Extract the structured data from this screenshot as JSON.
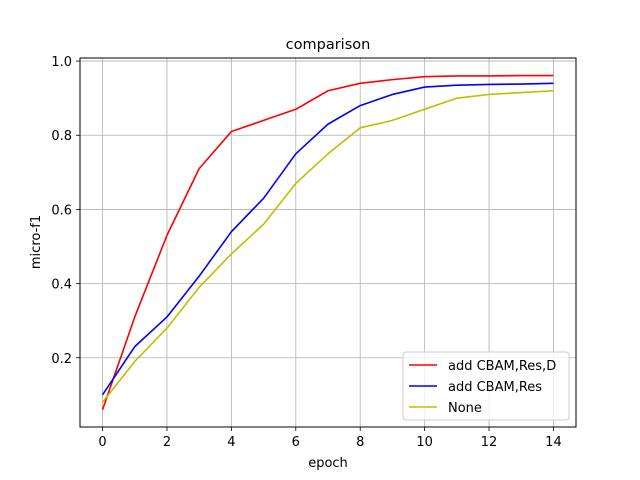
{
  "chart_data": {
    "type": "line",
    "title": "comparison",
    "xlabel": "epoch",
    "ylabel": "micro-f1",
    "xlim": [
      -0.7,
      14.7
    ],
    "ylim": [
      0.0133,
      1.0083
    ],
    "x_ticks": [
      0,
      2,
      4,
      6,
      8,
      10,
      12,
      14
    ],
    "y_ticks": [
      0.2,
      0.4,
      0.6,
      0.8,
      1.0
    ],
    "x_tick_labels": [
      "0",
      "2",
      "4",
      "6",
      "8",
      "10",
      "12",
      "14"
    ],
    "y_tick_labels": [
      "0.2",
      "0.4",
      "0.6",
      "0.8",
      "1.0"
    ],
    "grid": true,
    "legend_position": "lower-right",
    "x": [
      0,
      1,
      2,
      3,
      4,
      5,
      6,
      7,
      8,
      9,
      10,
      11,
      12,
      13,
      14
    ],
    "series": [
      {
        "name": "add CBAM,Res,D",
        "color": "#ff0000",
        "values": [
          0.06,
          0.31,
          0.53,
          0.71,
          0.81,
          0.84,
          0.87,
          0.92,
          0.94,
          0.95,
          0.958,
          0.96,
          0.96,
          0.961,
          0.961
        ]
      },
      {
        "name": "add CBAM,Res",
        "color": "#0000ff",
        "values": [
          0.1,
          0.23,
          0.31,
          0.42,
          0.54,
          0.63,
          0.75,
          0.83,
          0.88,
          0.91,
          0.93,
          0.935,
          0.937,
          0.938,
          0.94
        ]
      },
      {
        "name": "None",
        "color": "#bfbf00",
        "values": [
          0.08,
          0.19,
          0.28,
          0.39,
          0.48,
          0.56,
          0.67,
          0.75,
          0.82,
          0.84,
          0.87,
          0.9,
          0.91,
          0.915,
          0.92
        ]
      }
    ]
  }
}
